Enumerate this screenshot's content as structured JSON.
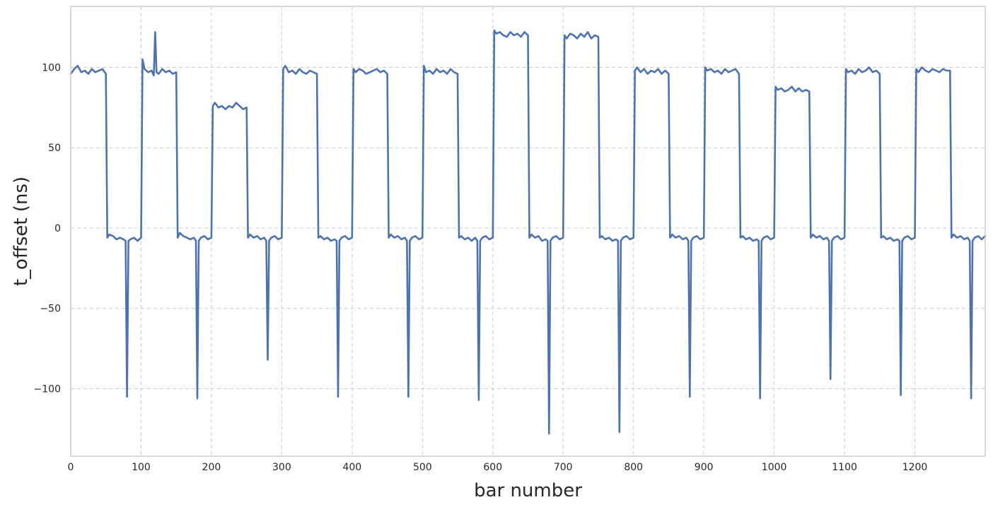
{
  "chart_data": {
    "type": "line",
    "title": "",
    "xlabel": "bar number",
    "ylabel": "t_offset (ns)",
    "xlim": [
      0,
      1300
    ],
    "ylim": [
      -142,
      138
    ],
    "xticks": [
      0,
      100,
      200,
      300,
      400,
      500,
      600,
      700,
      800,
      900,
      1000,
      1100,
      1200
    ],
    "yticks": [
      -100,
      -50,
      0,
      50,
      100
    ],
    "xtick_labels": [
      "0",
      "100",
      "200",
      "300",
      "400",
      "500",
      "600",
      "700",
      "800",
      "900",
      "1000",
      "1100",
      "1200"
    ],
    "ytick_labels": [
      "−100",
      "−50",
      "0",
      "50",
      "100"
    ],
    "grid": true,
    "colors": {
      "line": "#4c72b0",
      "grid": "#cccccc",
      "frame": "#cccccc"
    },
    "series": [
      {
        "x": [
          0,
          5,
          10,
          15,
          20,
          25,
          30,
          35,
          40,
          45,
          50,
          52,
          55,
          60,
          65,
          70,
          75,
          78,
          80,
          82,
          85,
          90,
          95,
          100,
          102,
          105,
          110,
          115,
          118,
          120,
          122,
          125,
          130,
          135,
          140,
          145,
          150,
          152,
          155,
          160,
          165,
          170,
          175,
          178,
          180,
          182,
          185,
          190,
          195,
          200,
          202,
          205,
          210,
          215,
          220,
          225,
          230,
          235,
          240,
          245,
          250,
          252,
          255,
          260,
          265,
          270,
          275,
          278,
          280,
          282,
          285,
          290,
          295,
          300,
          302,
          305,
          310,
          315,
          320,
          325,
          330,
          335,
          340,
          345,
          350,
          352,
          355,
          360,
          365,
          370,
          375,
          378,
          380,
          382,
          385,
          390,
          395,
          400,
          402,
          405,
          410,
          415,
          420,
          425,
          430,
          435,
          440,
          445,
          450,
          452,
          455,
          460,
          465,
          470,
          475,
          478,
          480,
          482,
          485,
          490,
          495,
          500,
          502,
          505,
          510,
          515,
          520,
          525,
          530,
          535,
          540,
          545,
          550,
          552,
          555,
          560,
          565,
          570,
          575,
          578,
          580,
          582,
          585,
          590,
          595,
          600,
          602,
          605,
          610,
          615,
          620,
          625,
          630,
          635,
          640,
          645,
          650,
          652,
          655,
          660,
          665,
          670,
          675,
          678,
          680,
          682,
          685,
          690,
          695,
          700,
          702,
          705,
          710,
          715,
          720,
          725,
          730,
          735,
          740,
          745,
          750,
          752,
          755,
          760,
          765,
          770,
          775,
          778,
          780,
          782,
          785,
          790,
          795,
          800,
          802,
          805,
          810,
          815,
          820,
          825,
          830,
          835,
          840,
          845,
          850,
          852,
          855,
          860,
          865,
          870,
          875,
          878,
          880,
          882,
          885,
          890,
          895,
          900,
          902,
          905,
          910,
          915,
          920,
          925,
          930,
          935,
          940,
          945,
          950,
          952,
          955,
          960,
          965,
          970,
          975,
          978,
          980,
          982,
          985,
          990,
          995,
          1000,
          1002,
          1005,
          1010,
          1015,
          1020,
          1025,
          1030,
          1035,
          1040,
          1045,
          1050,
          1052,
          1055,
          1060,
          1065,
          1070,
          1075,
          1078,
          1080,
          1082,
          1085,
          1090,
          1095,
          1100,
          1102,
          1105,
          1110,
          1115,
          1120,
          1125,
          1130,
          1135,
          1140,
          1145,
          1150,
          1152,
          1155,
          1160,
          1165,
          1170,
          1175,
          1178,
          1180,
          1182,
          1185,
          1190,
          1195,
          1200,
          1202,
          1205,
          1210,
          1215,
          1220,
          1225,
          1230,
          1235,
          1240,
          1245,
          1250,
          1252,
          1255,
          1260,
          1265,
          1270,
          1275,
          1278,
          1280,
          1282,
          1285,
          1290,
          1295,
          1300
        ],
        "y": [
          96,
          99,
          101,
          97,
          98,
          96,
          99,
          97,
          98,
          99,
          96,
          -6,
          -4,
          -5,
          -7,
          -6,
          -7,
          -8,
          -105,
          -8,
          -7,
          -6,
          -8,
          -6,
          105,
          99,
          97,
          98,
          95,
          122,
          97,
          96,
          99,
          97,
          98,
          96,
          97,
          -6,
          -3,
          -5,
          -6,
          -7,
          -6,
          -8,
          -106,
          -8,
          -6,
          -5,
          -7,
          -6,
          76,
          78,
          75,
          76,
          74,
          76,
          75,
          78,
          76,
          74,
          75,
          -6,
          -4,
          -6,
          -5,
          -7,
          -6,
          -8,
          -82,
          -8,
          -6,
          -5,
          -7,
          -6,
          99,
          101,
          97,
          98,
          96,
          99,
          97,
          96,
          98,
          97,
          96,
          -6,
          -5,
          -7,
          -6,
          -8,
          -7,
          -8,
          -105,
          -8,
          -6,
          -5,
          -7,
          -6,
          99,
          97,
          99,
          98,
          96,
          97,
          98,
          99,
          97,
          98,
          96,
          -6,
          -4,
          -6,
          -5,
          -7,
          -6,
          -8,
          -105,
          -8,
          -6,
          -5,
          -7,
          -6,
          101,
          97,
          98,
          96,
          99,
          97,
          98,
          96,
          99,
          97,
          96,
          -6,
          -5,
          -7,
          -6,
          -8,
          -6,
          -8,
          -107,
          -8,
          -6,
          -5,
          -7,
          -6,
          123,
          121,
          122,
          120,
          119,
          122,
          120,
          121,
          119,
          122,
          120,
          -6,
          -4,
          -6,
          -5,
          -8,
          -7,
          -8,
          -128,
          -8,
          -6,
          -5,
          -7,
          -6,
          120,
          118,
          121,
          120,
          118,
          121,
          119,
          122,
          118,
          120,
          119,
          -6,
          -5,
          -7,
          -6,
          -8,
          -7,
          -8,
          -127,
          -8,
          -6,
          -5,
          -7,
          -6,
          98,
          100,
          97,
          99,
          96,
          98,
          97,
          99,
          96,
          98,
          96,
          -6,
          -4,
          -6,
          -5,
          -7,
          -6,
          -8,
          -105,
          -8,
          -6,
          -5,
          -7,
          -6,
          100,
          98,
          99,
          97,
          98,
          96,
          99,
          97,
          98,
          99,
          96,
          -6,
          -5,
          -7,
          -6,
          -8,
          -7,
          -8,
          -106,
          -8,
          -6,
          -5,
          -7,
          -6,
          88,
          86,
          87,
          85,
          86,
          88,
          85,
          87,
          85,
          86,
          85,
          -6,
          -4,
          -6,
          -5,
          -7,
          -6,
          -8,
          -94,
          -8,
          -6,
          -5,
          -7,
          -6,
          99,
          97,
          98,
          96,
          99,
          97,
          98,
          100,
          97,
          98,
          96,
          -6,
          -5,
          -7,
          -6,
          -8,
          -7,
          -8,
          -104,
          -8,
          -6,
          -5,
          -7,
          -6,
          99,
          97,
          100,
          98,
          97,
          99,
          98,
          97,
          99,
          98,
          98,
          -6,
          -4,
          -6,
          -5,
          -7,
          -6,
          -8,
          -106,
          -8,
          -6,
          -5,
          -7,
          -5
        ]
      }
    ]
  }
}
